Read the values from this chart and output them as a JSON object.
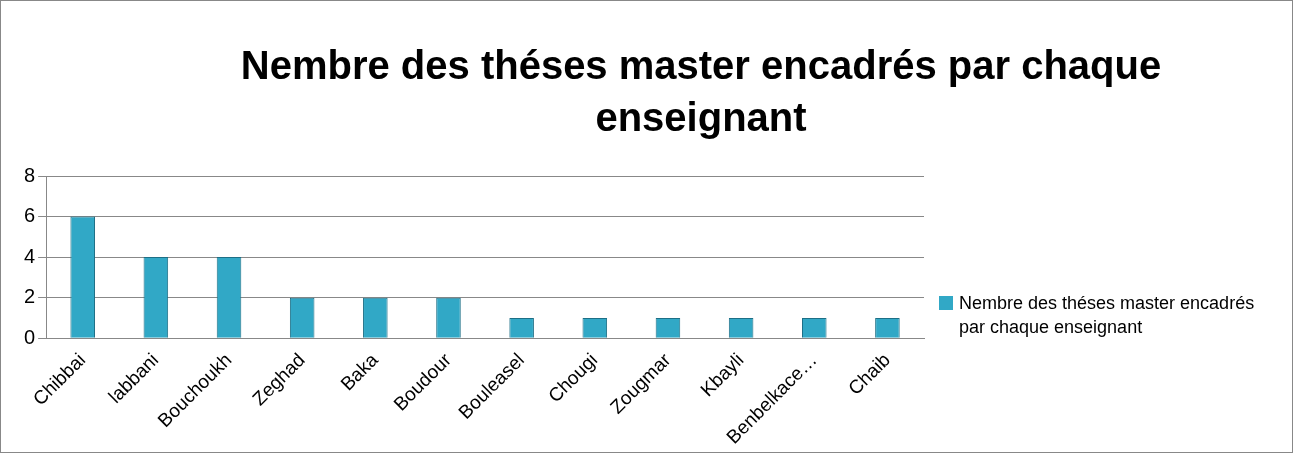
{
  "chart_data": {
    "type": "bar",
    "title": "Nembre des théses master encadrés par chaque enseignant",
    "categories": [
      "Chibbai",
      "labbani",
      "Bouchoukh",
      "Zeghad",
      "Baka",
      "Boudour",
      "Bouleasel",
      "Chougi",
      "Zougmar",
      "Kbayli",
      "Benbelkace…",
      "Chaib"
    ],
    "series": [
      {
        "name": "Nembre des théses master encadrés par chaque enseignant",
        "color": "#31a8c6",
        "values": [
          6,
          4,
          4,
          2,
          2,
          2,
          1,
          1,
          1,
          1,
          1,
          1
        ]
      }
    ],
    "ylim": [
      0,
      8
    ],
    "yticks": [
      0,
      2,
      4,
      6,
      8
    ],
    "grid": "y",
    "legend": "right"
  }
}
